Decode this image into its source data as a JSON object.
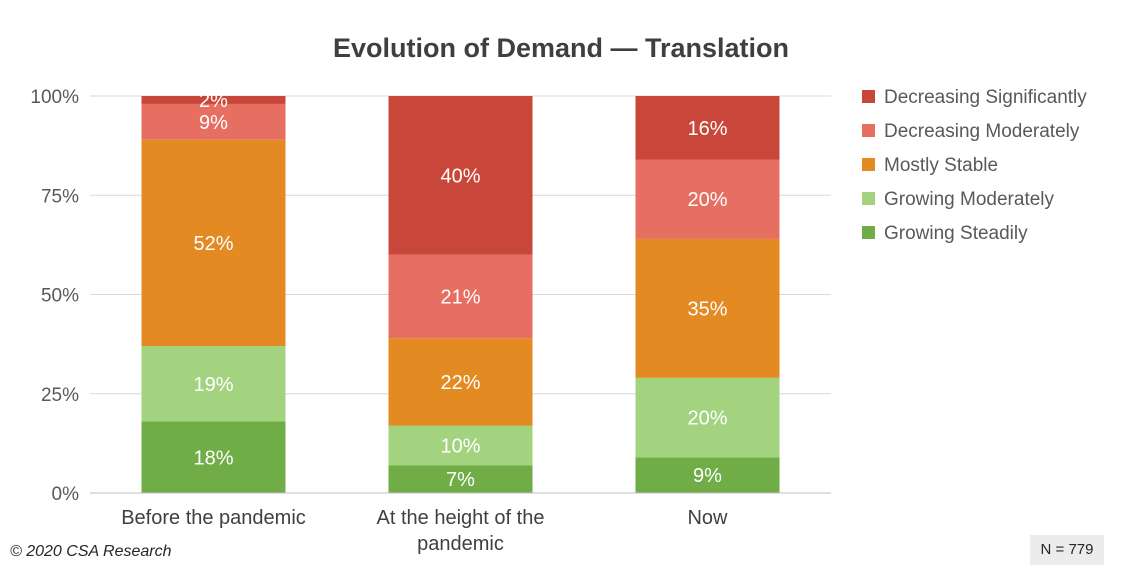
{
  "chart_data": {
    "type": "bar",
    "stacked": true,
    "title": "Evolution of Demand — Translation",
    "categories": [
      [
        "Before the pandemic"
      ],
      [
        "At the height of the",
        "pandemic"
      ],
      [
        "Now"
      ]
    ],
    "ylim": [
      0,
      100
    ],
    "yticks": [
      "0%",
      "25%",
      "50%",
      "75%",
      "100%"
    ],
    "ytick_values": [
      0,
      25,
      50,
      75,
      100
    ],
    "grid": true,
    "legend_position": "right",
    "series": [
      {
        "name": "Growing Steadily",
        "color": "#70ad47",
        "values": [
          18,
          7,
          9
        ],
        "labels": [
          "18%",
          "7%",
          "9%"
        ]
      },
      {
        "name": "Growing Moderately",
        "color": "#a3d37f",
        "values": [
          19,
          10,
          20
        ],
        "labels": [
          "19%",
          "10%",
          "20%"
        ]
      },
      {
        "name": "Mostly Stable",
        "color": "#e38b22",
        "values": [
          52,
          22,
          35
        ],
        "labels": [
          "52%",
          "22%",
          "35%"
        ]
      },
      {
        "name": "Decreasing Moderately",
        "color": "#e66f61",
        "values": [
          9,
          21,
          20
        ],
        "labels": [
          "9%",
          "21%",
          "20%"
        ]
      },
      {
        "name": "Decreasing Significantly",
        "color": "#c9473a",
        "values": [
          2,
          40,
          16
        ],
        "labels": [
          "2%",
          "40%",
          "16%"
        ]
      }
    ]
  },
  "footer": {
    "copyright": "© 2020 CSA Research",
    "sample_size": "N = 779"
  }
}
